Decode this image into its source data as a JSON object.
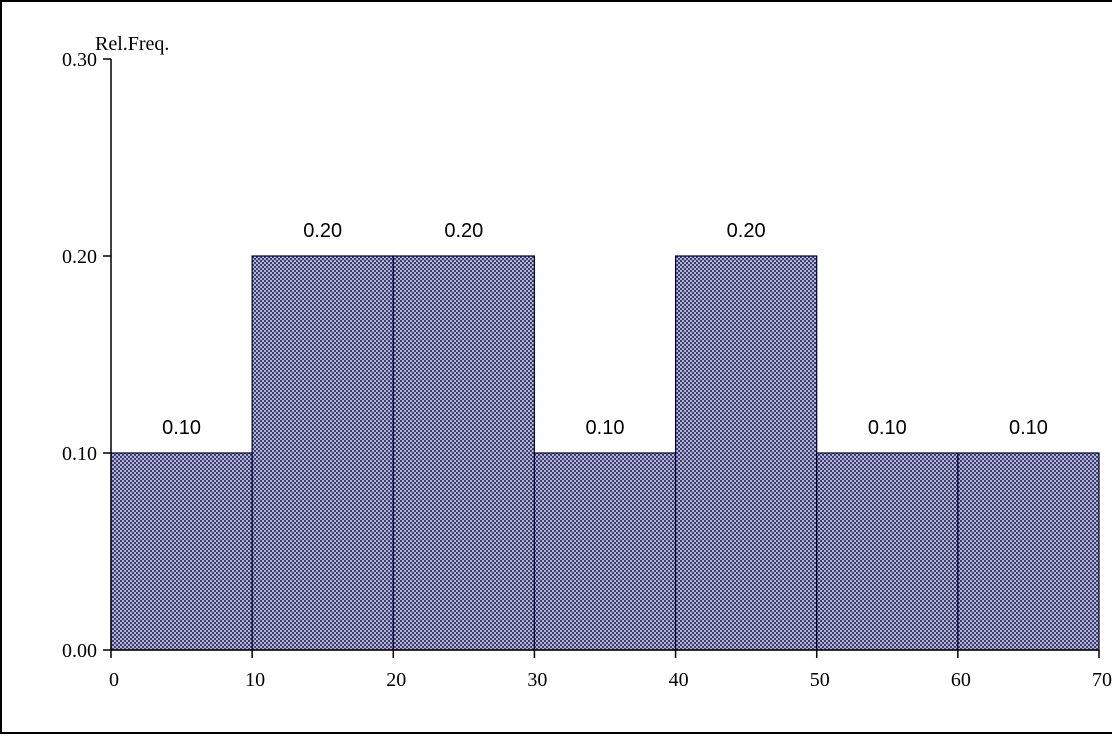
{
  "chart_data": {
    "type": "bar",
    "subtype": "histogram",
    "ylabel": "Rel.Freq.",
    "xlabel": "",
    "bins": [
      [
        0,
        10
      ],
      [
        10,
        20
      ],
      [
        20,
        30
      ],
      [
        30,
        40
      ],
      [
        40,
        50
      ],
      [
        50,
        60
      ],
      [
        60,
        70
      ]
    ],
    "values": [
      0.1,
      0.2,
      0.2,
      0.1,
      0.2,
      0.1,
      0.1
    ],
    "data_labels": [
      "0.10",
      "0.20",
      "0.20",
      "0.10",
      "0.20",
      "0.10",
      "0.10"
    ],
    "xticks": [
      0,
      10,
      20,
      30,
      40,
      50,
      60,
      70
    ],
    "xtick_labels": [
      "0",
      "10",
      "20",
      "30",
      "40",
      "50",
      "60",
      "70"
    ],
    "yticks": [
      0.0,
      0.1,
      0.2,
      0.3
    ],
    "ytick_labels": [
      "0.00",
      "0.10",
      "0.20",
      "0.30"
    ],
    "xlim": [
      0,
      70
    ],
    "ylim": [
      0,
      0.3
    ],
    "grid": false,
    "legend": "none",
    "bar_fill_color": "#9a9ab8",
    "bar_pattern_color": "#1a1a5a",
    "bar_edge_color": "#000033"
  }
}
